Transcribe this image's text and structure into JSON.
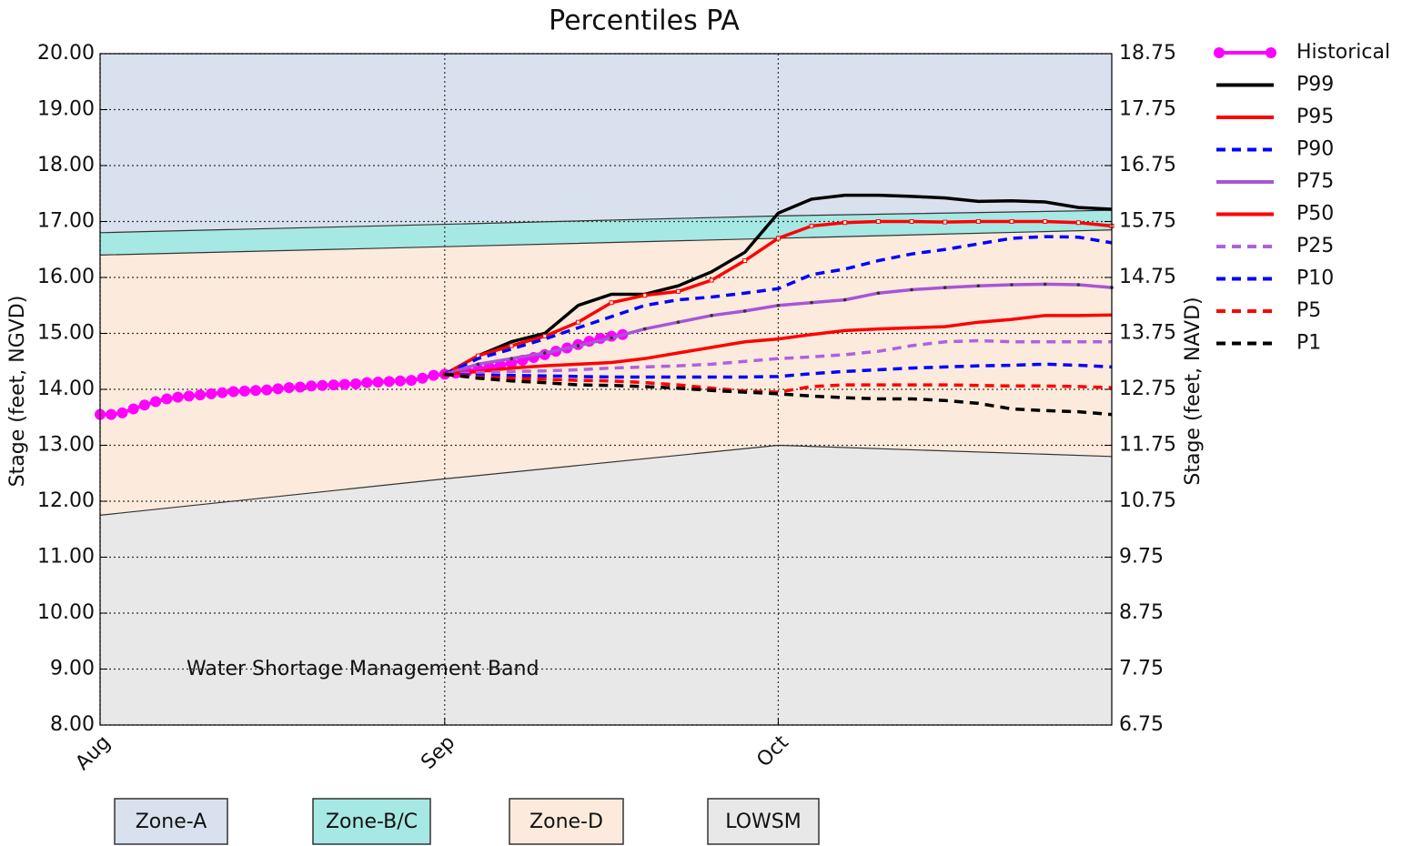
{
  "chart_data": {
    "type": "line",
    "title": "Percentiles PA",
    "ylabel": "Stage (feet, NGVD)",
    "y2label": "Stage (feet, NAVD)",
    "annotation": "Water Shortage Management Band",
    "xlim": [
      0,
      91
    ],
    "xticks": [
      {
        "value": 0,
        "label": "Aug"
      },
      {
        "value": 31,
        "label": "Sep"
      },
      {
        "value": 61,
        "label": "Oct"
      }
    ],
    "ylim": [
      8,
      20
    ],
    "yticks": [
      {
        "value": 8,
        "label": "8.00"
      },
      {
        "value": 9,
        "label": "9.00"
      },
      {
        "value": 10,
        "label": "10.00"
      },
      {
        "value": 11,
        "label": "11.00"
      },
      {
        "value": 12,
        "label": "12.00"
      },
      {
        "value": 13,
        "label": "13.00"
      },
      {
        "value": 14,
        "label": "14.00"
      },
      {
        "value": 15,
        "label": "15.00"
      },
      {
        "value": 16,
        "label": "16.00"
      },
      {
        "value": 17,
        "label": "17.00"
      },
      {
        "value": 18,
        "label": "18.00"
      },
      {
        "value": 19,
        "label": "19.00"
      },
      {
        "value": 20,
        "label": "20.00"
      }
    ],
    "y2lim": [
      6.75,
      18.75
    ],
    "y2ticks": [
      6.75,
      7.75,
      8.75,
      9.75,
      10.75,
      11.75,
      12.75,
      13.75,
      14.75,
      15.75,
      16.75,
      17.75,
      18.75
    ],
    "grid": true,
    "zones": [
      {
        "name": "Zone-A",
        "color": "#d9e1ee"
      },
      {
        "name": "Zone-B/C",
        "color": "#a6e8e4"
      },
      {
        "name": "Zone-D",
        "color": "#fcebdc"
      },
      {
        "name": "LOWSM",
        "color": "#e8e8e8"
      }
    ],
    "zone_x": [
      0,
      31,
      61,
      91
    ],
    "zone_bounds": [
      [
        16.8,
        16.95,
        17.1,
        17.2
      ],
      [
        16.4,
        16.55,
        16.7,
        16.85
      ],
      [
        11.75,
        12.4,
        13.0,
        12.8
      ]
    ],
    "series": [
      {
        "name": "Historical",
        "color": "#ff00ff",
        "dash": false,
        "marker": "circle",
        "x": [
          0,
          1,
          2,
          3,
          4,
          5,
          6,
          7,
          8,
          9,
          10,
          11,
          12,
          13,
          14,
          15,
          16,
          17,
          18,
          19,
          20,
          21,
          22,
          23,
          24,
          25,
          26,
          27,
          28,
          29,
          30,
          31,
          32,
          33,
          34,
          35,
          36,
          37,
          38,
          39,
          40,
          41,
          42,
          43,
          44,
          45,
          46,
          47
        ],
        "values": [
          13.55,
          13.55,
          13.58,
          13.65,
          13.72,
          13.78,
          13.83,
          13.86,
          13.88,
          13.9,
          13.92,
          13.94,
          13.96,
          13.97,
          13.98,
          13.99,
          14.01,
          14.03,
          14.04,
          14.06,
          14.07,
          14.08,
          14.09,
          14.1,
          14.12,
          14.13,
          14.14,
          14.15,
          14.16,
          14.2,
          14.25,
          14.27,
          14.29,
          14.32,
          14.36,
          14.4,
          14.43,
          14.47,
          14.52,
          14.57,
          14.62,
          14.68,
          14.74,
          14.8,
          14.86,
          14.91,
          14.95,
          14.98
        ]
      },
      {
        "name": "P99",
        "color": "#000000",
        "dash": false,
        "marker": "none",
        "x": [
          31,
          34,
          37,
          40,
          43,
          46,
          49,
          52,
          55,
          58,
          61,
          64,
          67,
          70,
          73,
          76,
          79,
          82,
          85,
          88,
          91
        ],
        "values": [
          14.27,
          14.6,
          14.85,
          15.0,
          15.5,
          15.7,
          15.7,
          15.85,
          16.1,
          16.45,
          17.15,
          17.4,
          17.47,
          17.47,
          17.45,
          17.42,
          17.36,
          17.37,
          17.35,
          17.25,
          17.22
        ]
      },
      {
        "name": "P95",
        "color": "#ff0000",
        "dash": false,
        "marker": "square",
        "x": [
          31,
          34,
          37,
          40,
          43,
          46,
          49,
          52,
          55,
          58,
          61,
          64,
          67,
          70,
          73,
          76,
          79,
          82,
          85,
          88,
          91
        ],
        "values": [
          14.27,
          14.6,
          14.78,
          14.95,
          15.2,
          15.55,
          15.68,
          15.75,
          15.95,
          16.3,
          16.7,
          16.92,
          16.98,
          17.0,
          17.0,
          16.99,
          17.0,
          17.0,
          17.0,
          16.98,
          16.92
        ]
      },
      {
        "name": "P90",
        "color": "#0000ff",
        "dash": true,
        "marker": "none",
        "x": [
          31,
          34,
          37,
          40,
          43,
          46,
          49,
          52,
          55,
          58,
          61,
          64,
          67,
          70,
          73,
          76,
          79,
          82,
          85,
          88,
          91
        ],
        "values": [
          14.27,
          14.55,
          14.72,
          14.9,
          15.1,
          15.3,
          15.5,
          15.6,
          15.65,
          15.72,
          15.8,
          16.05,
          16.15,
          16.3,
          16.42,
          16.5,
          16.6,
          16.7,
          16.73,
          16.72,
          16.62
        ]
      },
      {
        "name": "P75",
        "color": "#a855d6",
        "dash": false,
        "marker": "dot",
        "x": [
          31,
          34,
          37,
          40,
          43,
          46,
          49,
          52,
          55,
          58,
          61,
          64,
          67,
          70,
          73,
          76,
          79,
          82,
          85,
          88,
          91
        ],
        "values": [
          14.27,
          14.45,
          14.55,
          14.65,
          14.78,
          14.92,
          15.08,
          15.2,
          15.32,
          15.4,
          15.5,
          15.55,
          15.6,
          15.72,
          15.78,
          15.82,
          15.85,
          15.87,
          15.88,
          15.87,
          15.82
        ]
      },
      {
        "name": "P50",
        "color": "#ff0000",
        "dash": false,
        "marker": "none",
        "x": [
          31,
          34,
          37,
          40,
          43,
          46,
          49,
          52,
          55,
          58,
          61,
          64,
          67,
          70,
          73,
          76,
          79,
          82,
          85,
          88,
          91
        ],
        "values": [
          14.27,
          14.32,
          14.38,
          14.42,
          14.45,
          14.48,
          14.55,
          14.65,
          14.75,
          14.85,
          14.9,
          14.98,
          15.05,
          15.08,
          15.1,
          15.12,
          15.2,
          15.25,
          15.32,
          15.32,
          15.33
        ]
      },
      {
        "name": "P25",
        "color": "#b060e0",
        "dash": true,
        "marker": "none",
        "x": [
          31,
          34,
          37,
          40,
          43,
          46,
          49,
          52,
          55,
          58,
          61,
          64,
          67,
          70,
          73,
          76,
          79,
          82,
          85,
          88,
          91
        ],
        "values": [
          14.27,
          14.3,
          14.32,
          14.33,
          14.35,
          14.38,
          14.4,
          14.42,
          14.45,
          14.5,
          14.55,
          14.58,
          14.62,
          14.68,
          14.78,
          14.85,
          14.87,
          14.85,
          14.85,
          14.85,
          14.85
        ]
      },
      {
        "name": "P10",
        "color": "#0000ff",
        "dash": true,
        "marker": "none",
        "x": [
          31,
          34,
          37,
          40,
          43,
          46,
          49,
          52,
          55,
          58,
          61,
          64,
          67,
          70,
          73,
          76,
          79,
          82,
          85,
          88,
          91
        ],
        "values": [
          14.27,
          14.25,
          14.25,
          14.24,
          14.23,
          14.22,
          14.22,
          14.22,
          14.22,
          14.22,
          14.23,
          14.28,
          14.32,
          14.35,
          14.38,
          14.4,
          14.42,
          14.43,
          14.45,
          14.43,
          14.4
        ]
      },
      {
        "name": "P5",
        "color": "#ff0000",
        "dash": true,
        "marker": "none",
        "x": [
          31,
          34,
          37,
          40,
          43,
          46,
          49,
          52,
          55,
          58,
          61,
          64,
          67,
          70,
          73,
          76,
          79,
          82,
          85,
          88,
          91
        ],
        "values": [
          14.27,
          14.22,
          14.2,
          14.18,
          14.16,
          14.15,
          14.12,
          14.08,
          14.02,
          13.97,
          13.95,
          14.05,
          14.08,
          14.08,
          14.08,
          14.08,
          14.07,
          14.06,
          14.06,
          14.05,
          14.03
        ]
      },
      {
        "name": "P1",
        "color": "#000000",
        "dash": true,
        "marker": "none",
        "x": [
          31,
          34,
          37,
          40,
          43,
          46,
          49,
          52,
          55,
          58,
          61,
          64,
          67,
          70,
          73,
          76,
          79,
          82,
          85,
          88,
          91
        ],
        "values": [
          14.27,
          14.2,
          14.15,
          14.12,
          14.08,
          14.07,
          14.05,
          14.02,
          13.98,
          13.95,
          13.92,
          13.88,
          13.85,
          13.83,
          13.83,
          13.8,
          13.75,
          13.65,
          13.62,
          13.6,
          13.55
        ]
      }
    ]
  }
}
